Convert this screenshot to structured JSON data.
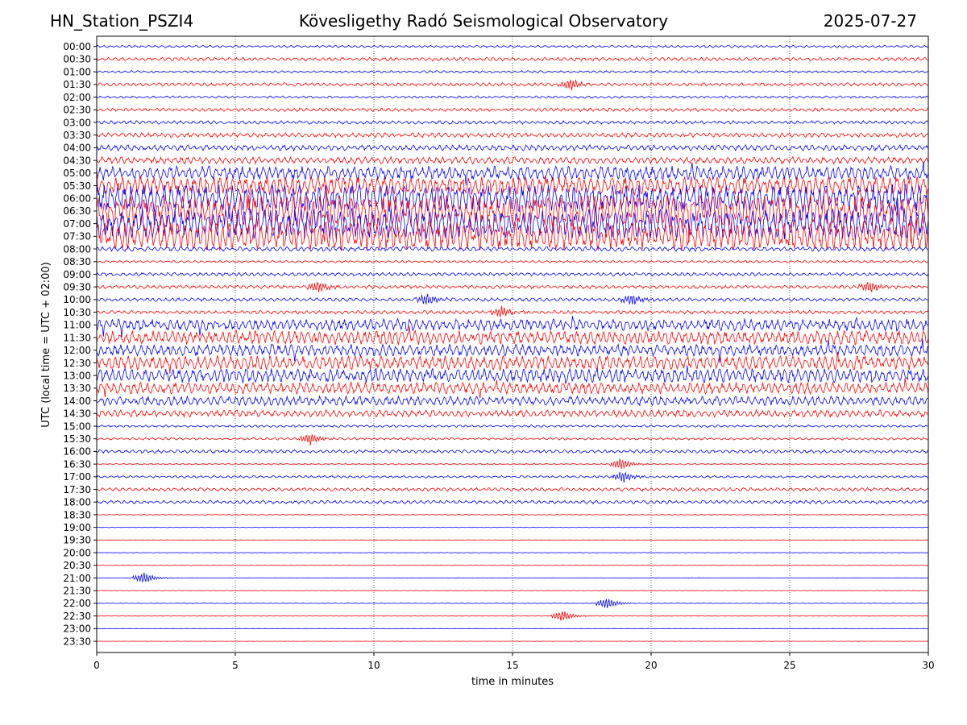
{
  "header": {
    "station": "HN_Station_PSZI4",
    "observatory": "Kövesligethy Radó Seismological Observatory",
    "date": "2025-07-27"
  },
  "chart_data": {
    "type": "line",
    "title": "Kövesligethy Radó Seismological Observatory",
    "xlabel": "time in minutes",
    "ylabel": "UTC (local time = UTC + 02:00)",
    "xlim": [
      0,
      30
    ],
    "xticks": [
      0,
      5,
      10,
      15,
      20,
      25,
      30
    ],
    "grid": "vertical dotted at each x tick",
    "colors": {
      "even_rows": "#0000ff",
      "odd_rows": "#ff0000"
    },
    "rows": [
      "00:00",
      "00:30",
      "01:00",
      "01:30",
      "02:00",
      "02:30",
      "03:00",
      "03:30",
      "04:00",
      "04:30",
      "05:00",
      "05:30",
      "06:00",
      "06:30",
      "07:00",
      "07:30",
      "08:00",
      "08:30",
      "09:00",
      "09:30",
      "10:00",
      "10:30",
      "11:00",
      "11:30",
      "12:00",
      "12:30",
      "13:00",
      "13:30",
      "14:00",
      "14:30",
      "15:00",
      "15:30",
      "16:00",
      "16:30",
      "17:00",
      "17:30",
      "18:00",
      "18:30",
      "19:00",
      "19:30",
      "20:00",
      "20:30",
      "21:00",
      "21:30",
      "22:00",
      "22:30",
      "23:00",
      "23:30"
    ],
    "activity_level": [
      1,
      1.5,
      1,
      1.5,
      1,
      1.5,
      1.5,
      2,
      2.5,
      3,
      6,
      8,
      12,
      14,
      13,
      12,
      2,
      1,
      1.5,
      1.5,
      1.5,
      1.5,
      5,
      6,
      5,
      6,
      6,
      5,
      4,
      3,
      1,
      1,
      1.5,
      0.6,
      1,
      1.5,
      1.5,
      0.3,
      0.2,
      0.2,
      0.2,
      0.2,
      0.2,
      0.2,
      0.2,
      0.2,
      0.1,
      0.1
    ],
    "events": [
      {
        "row": "01:30",
        "minute": 17.1
      },
      {
        "row": "07:30",
        "minute": 8.3
      },
      {
        "row": "09:30",
        "minute": 8
      },
      {
        "row": "09:30",
        "minute": 27.9
      },
      {
        "row": "10:00",
        "minute": 11.9
      },
      {
        "row": "10:00",
        "minute": 19.3
      },
      {
        "row": "10:30",
        "minute": 14.6
      },
      {
        "row": "15:30",
        "minute": 7.7
      },
      {
        "row": "16:30",
        "minute": 18.9
      },
      {
        "row": "17:00",
        "minute": 19
      },
      {
        "row": "21:00",
        "minute": 1.7
      },
      {
        "row": "22:00",
        "minute": 18.4
      },
      {
        "row": "22:30",
        "minute": 16.8
      }
    ]
  }
}
